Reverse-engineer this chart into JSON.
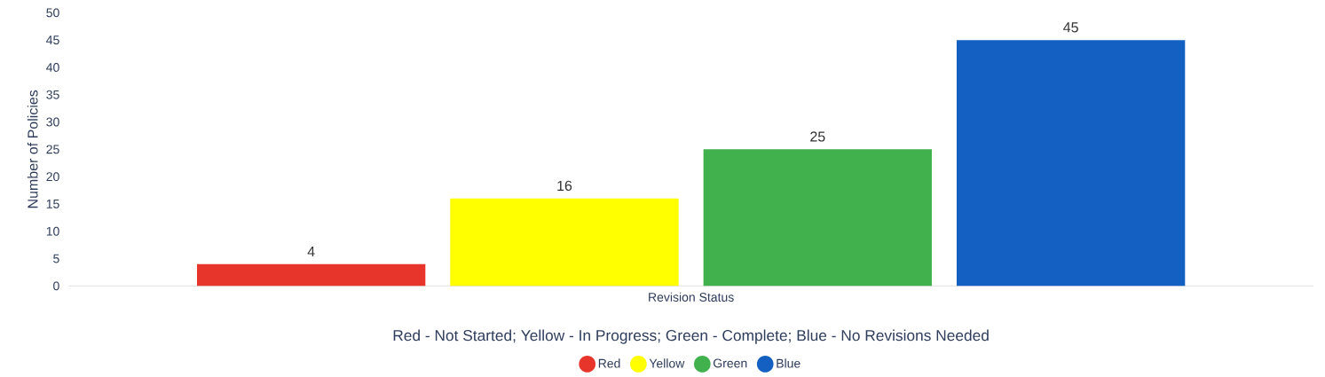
{
  "chart_data": {
    "type": "bar",
    "categories": [
      "Revision Status"
    ],
    "ylabel": "Number of Policies",
    "legend_title": "Red - Not Started; Yellow - In Progress; Green - Complete; Blue - No Revisions Needed",
    "series": [
      {
        "name": "Red",
        "color": "#e8352c",
        "values": [
          4
        ]
      },
      {
        "name": "Yellow",
        "color": "#ffff00",
        "values": [
          16
        ]
      },
      {
        "name": "Green",
        "color": "#41b14d",
        "values": [
          25
        ]
      },
      {
        "name": "Blue",
        "color": "#1360c2",
        "values": [
          45
        ]
      }
    ],
    "ylim": [
      0,
      50
    ],
    "yticks": [
      0,
      5,
      10,
      15,
      20,
      25,
      30,
      35,
      40,
      45,
      50
    ],
    "data_labels": true,
    "legend": "bottom"
  }
}
